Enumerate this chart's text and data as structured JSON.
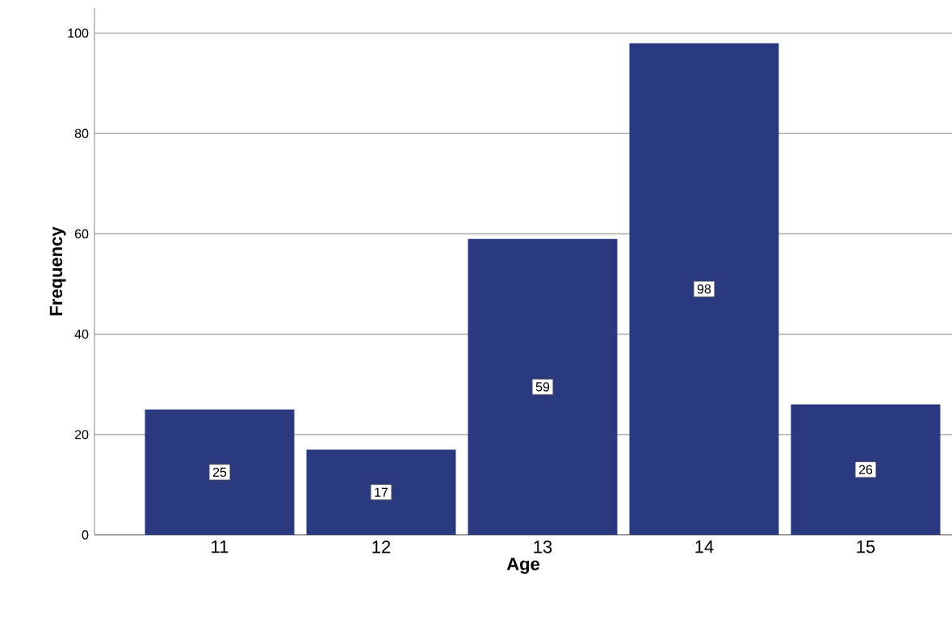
{
  "chart_data": {
    "type": "bar",
    "xlabel": "Age",
    "ylabel": "Frequency",
    "categories": [
      "11",
      "12",
      "13",
      "14",
      "15"
    ],
    "values": [
      25,
      17,
      59,
      98,
      26
    ],
    "color": "#2b3a7e",
    "ylim": [
      0,
      105
    ],
    "yticks": [
      0,
      20,
      40,
      60,
      80,
      100
    ],
    "grid": "y",
    "data_labels": true
  }
}
